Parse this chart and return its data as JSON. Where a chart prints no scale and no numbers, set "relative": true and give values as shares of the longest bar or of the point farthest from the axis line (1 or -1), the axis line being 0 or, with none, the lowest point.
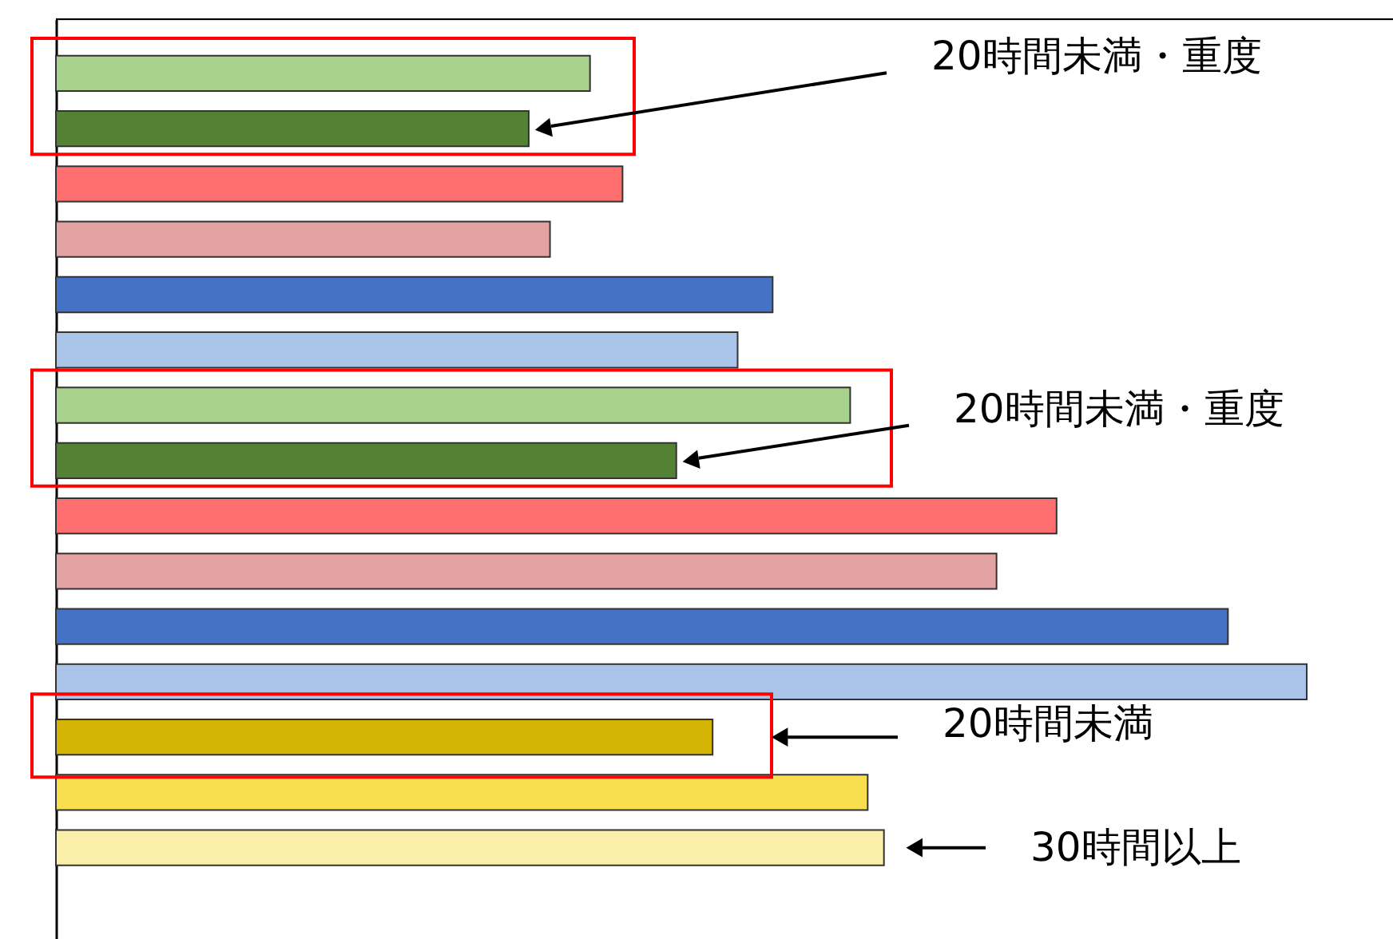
{
  "chart_data": {
    "type": "bar",
    "orientation": "horizontal",
    "relative": true,
    "categories": [
      null,
      null,
      null,
      null,
      null,
      null,
      null,
      null,
      null,
      null,
      null,
      null,
      null,
      null,
      null
    ],
    "values": [
      0.427,
      0.378,
      0.453,
      0.395,
      0.573,
      0.545,
      0.635,
      0.496,
      0.8,
      0.752,
      0.937,
      1.0,
      0.525,
      0.649,
      0.662
    ],
    "colors": [
      "#a9d18e",
      "#548235",
      "#ff6f6f",
      "#e3a3a3",
      "#4472c4",
      "#a9c4e8",
      "#a9d18e",
      "#548235",
      "#ff6f6f",
      "#e3a3a3",
      "#4472c4",
      "#a9c4e8",
      "#d4b506",
      "#f9df4f",
      "#fbeea8"
    ],
    "annotations": [
      "20時間未満・重度",
      "20時間未満・重度",
      "20時間未満",
      "30時間以上"
    ]
  }
}
